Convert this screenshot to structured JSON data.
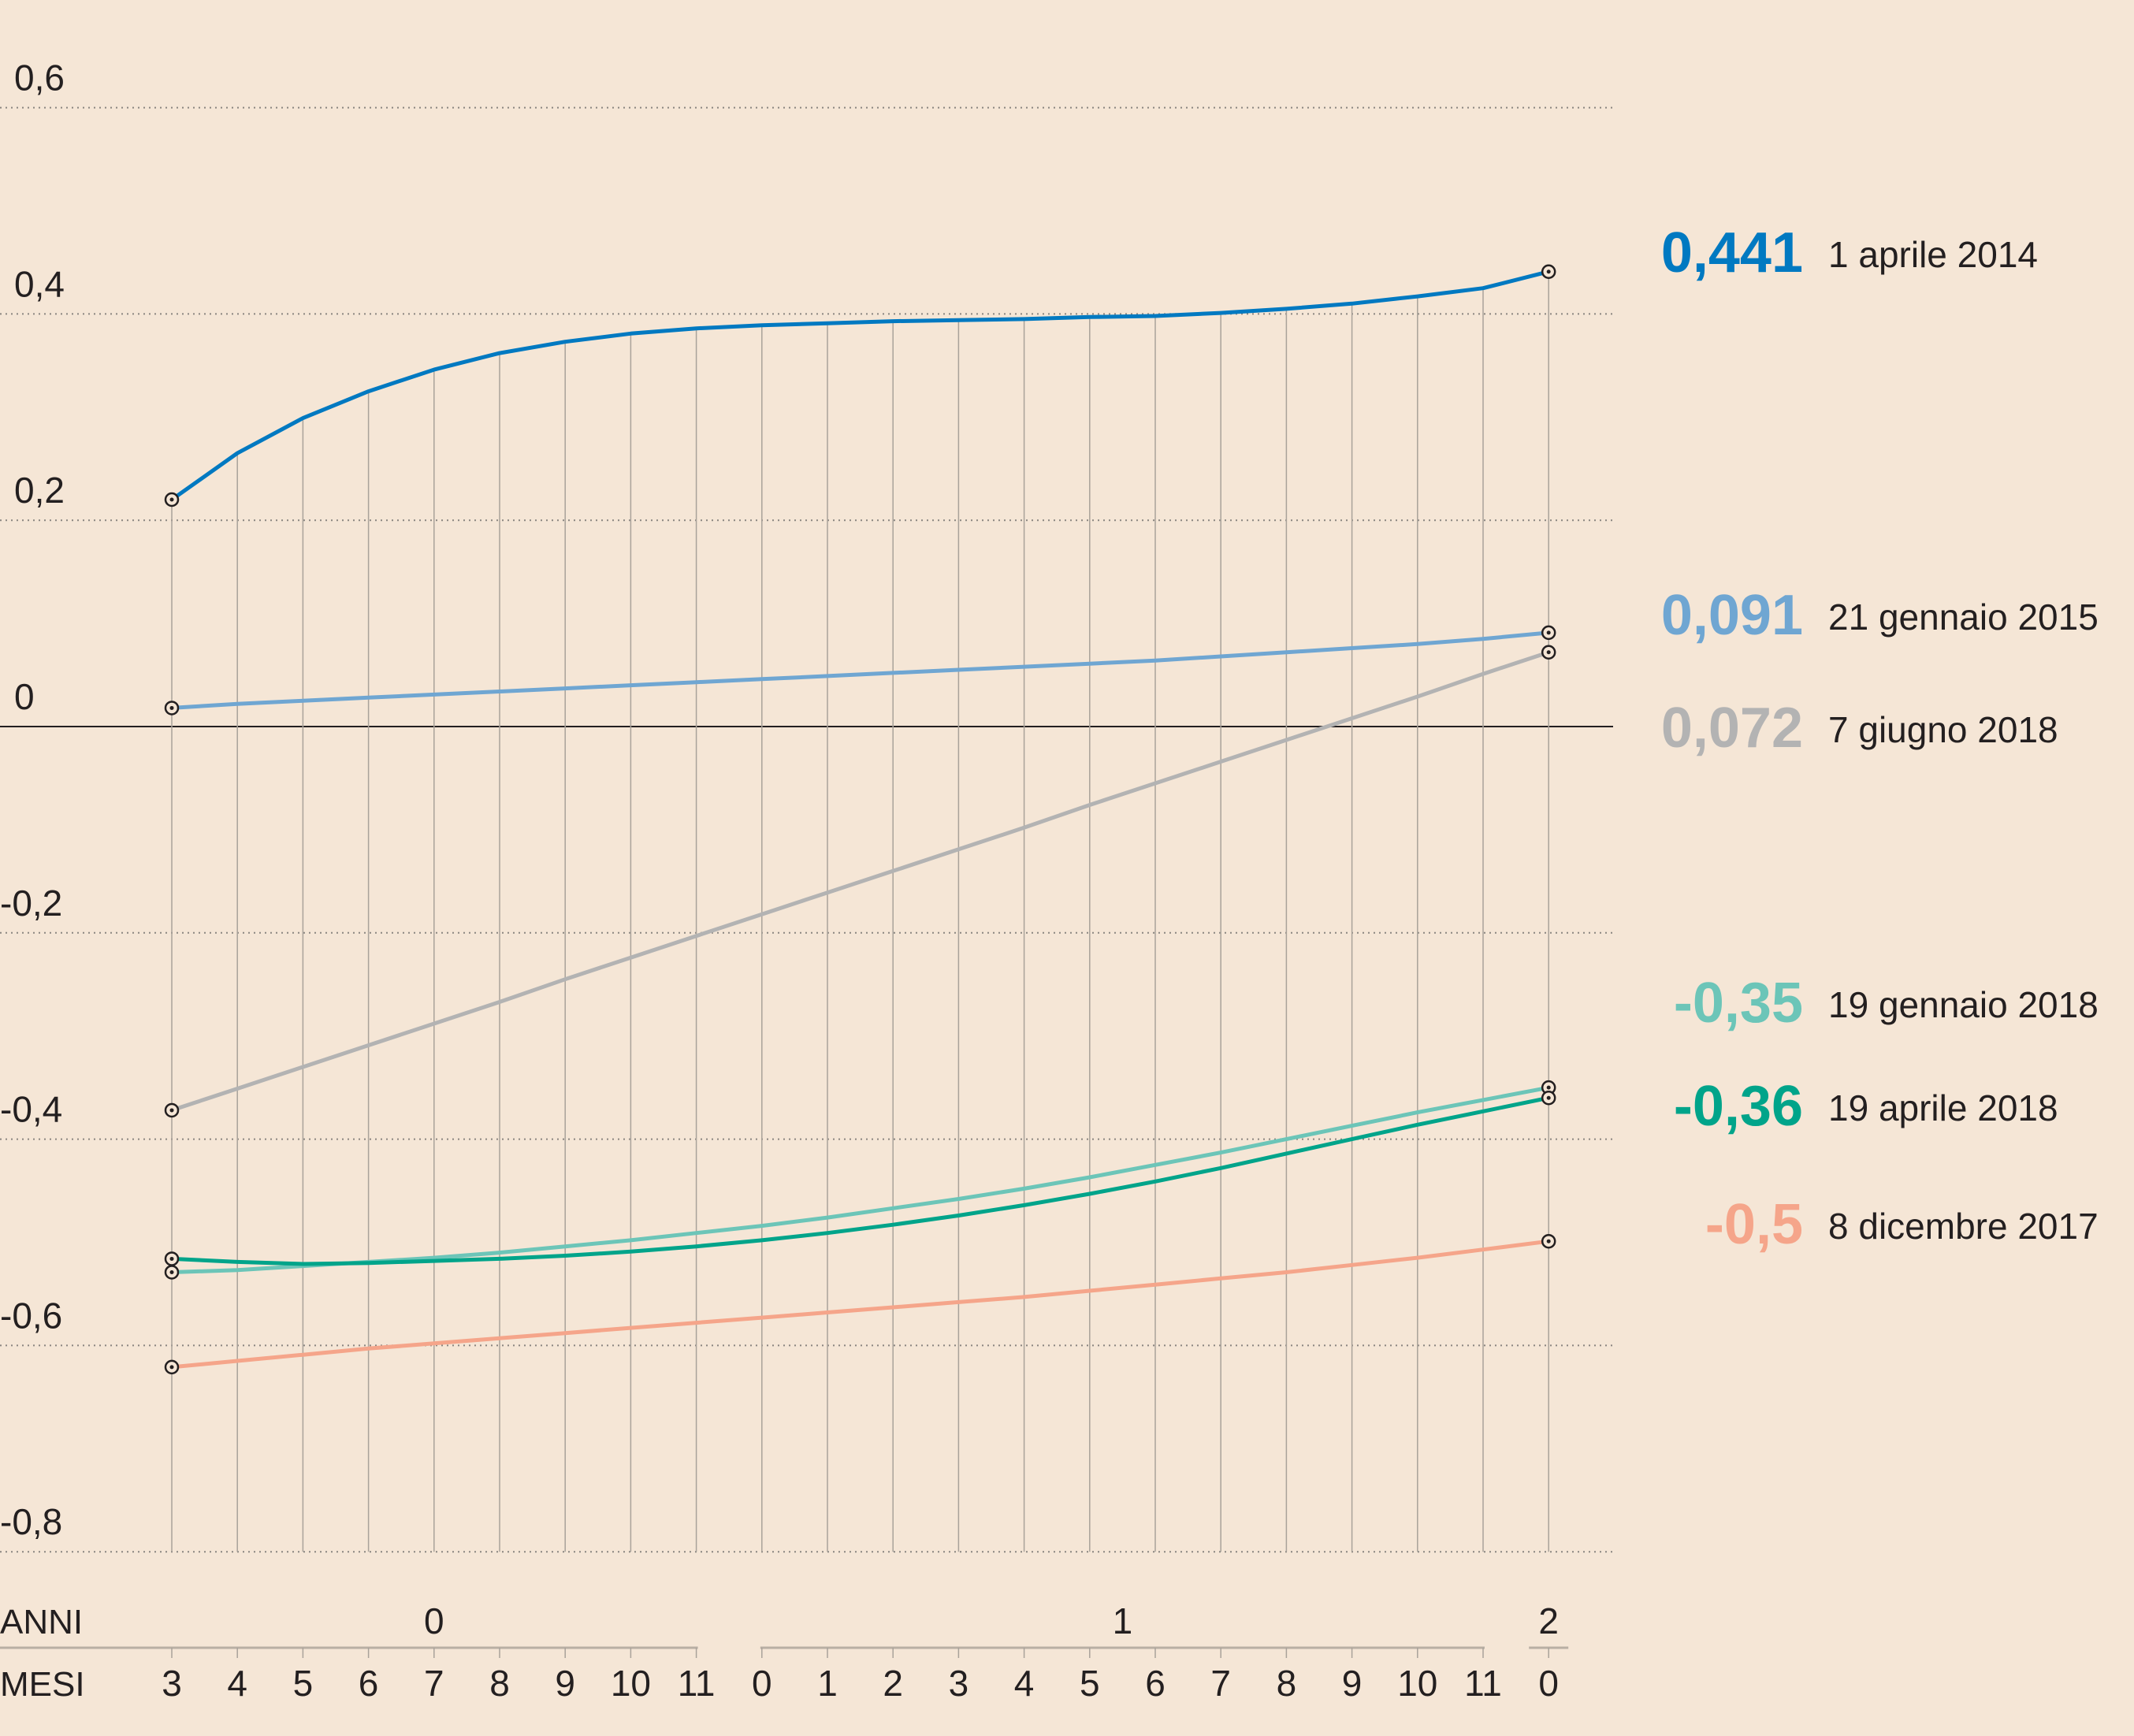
{
  "chart_data": {
    "type": "line",
    "title": "",
    "xlabel": "ANNI / MESI",
    "ylabel": "",
    "ylim": [
      -0.8,
      0.6
    ],
    "y_ticks": [
      "0,6",
      "0,4",
      "0,2",
      "0",
      "-0,2",
      "-0,4",
      "-0,6",
      "-0,8"
    ],
    "y_tick_values": [
      0.6,
      0.4,
      0.2,
      0,
      -0.2,
      -0.4,
      -0.6,
      -0.8
    ],
    "grid": true,
    "x_axis": {
      "anni_label": "ANNI",
      "mesi_label": "MESI",
      "years": [
        {
          "label": "0",
          "from": 0,
          "to": 8
        },
        {
          "label": "1",
          "from": 9,
          "to": 20
        },
        {
          "label": "2",
          "from": 21,
          "to": 21
        }
      ],
      "months": [
        "3",
        "4",
        "5",
        "6",
        "7",
        "8",
        "9",
        "10",
        "11",
        "0",
        "1",
        "2",
        "3",
        "4",
        "5",
        "6",
        "7",
        "8",
        "9",
        "10",
        "11",
        "0"
      ]
    },
    "series": [
      {
        "name": "1 aprile 2014",
        "end_label": "0,441",
        "color": "#0079c1",
        "values": [
          0.22,
          0.265,
          0.299,
          0.325,
          0.346,
          0.362,
          0.373,
          0.381,
          0.386,
          0.389,
          0.391,
          0.393,
          0.394,
          0.395,
          0.397,
          0.398,
          0.401,
          0.405,
          0.41,
          0.417,
          0.425,
          0.441
        ]
      },
      {
        "name": "21 gennaio 2015",
        "end_label": "0,091",
        "color": "#6fa6d2",
        "values": [
          0.018,
          0.022,
          0.025,
          0.028,
          0.031,
          0.034,
          0.037,
          0.04,
          0.043,
          0.046,
          0.049,
          0.052,
          0.055,
          0.058,
          0.061,
          0.064,
          0.068,
          0.072,
          0.076,
          0.08,
          0.085,
          0.091
        ]
      },
      {
        "name": "7 giugno 2018",
        "end_label": "0,072",
        "color": "#b3b3b3",
        "values": [
          -0.372,
          -0.351,
          -0.33,
          -0.309,
          -0.288,
          -0.267,
          -0.245,
          -0.224,
          -0.203,
          -0.182,
          -0.161,
          -0.14,
          -0.119,
          -0.098,
          -0.076,
          -0.055,
          -0.034,
          -0.013,
          0.008,
          0.029,
          0.051,
          0.072
        ]
      },
      {
        "name": "19 gennaio 2018",
        "end_label": "-0,35",
        "color": "#6cc5b8",
        "values": [
          -0.529,
          -0.527,
          -0.523,
          -0.519,
          -0.515,
          -0.51,
          -0.504,
          -0.498,
          -0.491,
          -0.484,
          -0.476,
          -0.467,
          -0.458,
          -0.448,
          -0.437,
          -0.425,
          -0.413,
          -0.4,
          -0.387,
          -0.374,
          -0.362,
          -0.35
        ]
      },
      {
        "name": "19 aprile 2018",
        "end_label": "-0,36",
        "color": "#00a48a",
        "values": [
          -0.516,
          -0.519,
          -0.521,
          -0.52,
          -0.518,
          -0.516,
          -0.513,
          -0.509,
          -0.504,
          -0.498,
          -0.491,
          -0.483,
          -0.474,
          -0.464,
          -0.453,
          -0.441,
          -0.428,
          -0.414,
          -0.4,
          -0.386,
          -0.373,
          -0.36
        ]
      },
      {
        "name": "8 dicembre 2017",
        "end_label": "-0,5",
        "color": "#f5a58a",
        "values": [
          -0.621,
          -0.615,
          -0.609,
          -0.603,
          -0.598,
          -0.593,
          -0.588,
          -0.583,
          -0.578,
          -0.573,
          -0.568,
          -0.563,
          -0.558,
          -0.553,
          -0.547,
          -0.541,
          -0.535,
          -0.529,
          -0.522,
          -0.515,
          -0.507,
          -0.499
        ]
      }
    ],
    "legend": "right"
  },
  "colors": {
    "background": "#f5e6d6",
    "text": "#231f20",
    "grid": "#8a8580"
  }
}
